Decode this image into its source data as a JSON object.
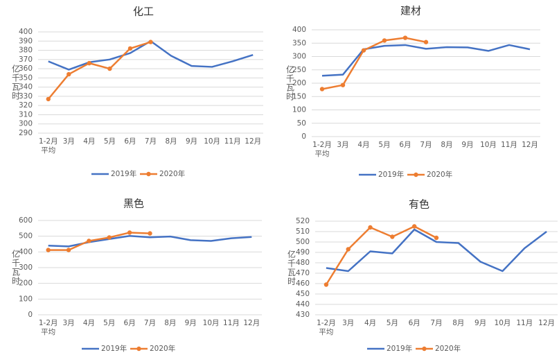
{
  "chart_data": [
    {
      "type": "line",
      "title": "化工",
      "y_label": "亿千瓦时",
      "categories": [
        "1-2月平均",
        "3月",
        "4月",
        "5月",
        "6月",
        "7月",
        "8月",
        "9月",
        "10月",
        "11月",
        "12月"
      ],
      "series": [
        {
          "name": "2019年",
          "color": "#4472c4",
          "values": [
            368,
            359,
            367,
            370,
            377,
            390,
            374,
            363,
            362,
            368,
            375
          ]
        },
        {
          "name": "2020年",
          "color": "#ed7d31",
          "values": [
            327,
            354,
            366,
            360,
            382,
            389,
            null,
            null,
            null,
            null,
            null
          ]
        }
      ],
      "ylim": [
        290,
        400
      ],
      "yticks": [
        290,
        300,
        310,
        320,
        330,
        340,
        350,
        360,
        370,
        380,
        390,
        400
      ],
      "grid": true
    },
    {
      "type": "line",
      "title": "建材",
      "y_label": "亿千瓦时",
      "categories": [
        "1-2月平均",
        "3月",
        "4月",
        "5月",
        "6月",
        "7月",
        "8月",
        "9月",
        "10月",
        "11月",
        "12月"
      ],
      "series": [
        {
          "name": "2019年",
          "color": "#4472c4",
          "values": [
            228,
            232,
            327,
            340,
            343,
            329,
            335,
            334,
            321,
            343,
            327
          ]
        },
        {
          "name": "2020年",
          "color": "#ed7d31",
          "values": [
            178,
            193,
            323,
            360,
            370,
            354,
            null,
            null,
            null,
            null,
            null
          ]
        }
      ],
      "ylim": [
        0,
        400
      ],
      "yticks": [
        0,
        50,
        100,
        150,
        200,
        250,
        300,
        350,
        400
      ],
      "grid": true
    },
    {
      "type": "line",
      "title": "黑色",
      "y_label": "亿千瓦时",
      "categories": [
        "1-2月平均",
        "3月",
        "4月",
        "5月",
        "6月",
        "7月",
        "8月",
        "9月",
        "10月",
        "11月",
        "12月"
      ],
      "series": [
        {
          "name": "2019年",
          "color": "#4472c4",
          "values": [
            440,
            435,
            462,
            482,
            502,
            493,
            498,
            475,
            470,
            487,
            495
          ]
        },
        {
          "name": "2020年",
          "color": "#ed7d31",
          "values": [
            412,
            412,
            470,
            492,
            523,
            518,
            null,
            null,
            null,
            null,
            null
          ]
        }
      ],
      "ylim": [
        0,
        600
      ],
      "yticks": [
        0,
        100,
        200,
        300,
        400,
        500,
        600
      ],
      "grid": true
    },
    {
      "type": "line",
      "title": "有色",
      "y_label": "亿千瓦时",
      "categories": [
        "1-2月平均",
        "3月",
        "4月",
        "5月",
        "6月",
        "7月",
        "8月",
        "9月",
        "10月",
        "11月",
        "12月"
      ],
      "series": [
        {
          "name": "2019年",
          "color": "#4472c4",
          "values": [
            475,
            472,
            491,
            489,
            512,
            500,
            499,
            481,
            472,
            494,
            510
          ]
        },
        {
          "name": "2020年",
          "color": "#ed7d31",
          "values": [
            459,
            493,
            514,
            505,
            515,
            504,
            null,
            null,
            null,
            null,
            null
          ]
        }
      ],
      "ylim": [
        430,
        520
      ],
      "yticks": [
        430,
        440,
        450,
        460,
        470,
        480,
        490,
        500,
        510,
        520
      ],
      "grid": true
    }
  ]
}
